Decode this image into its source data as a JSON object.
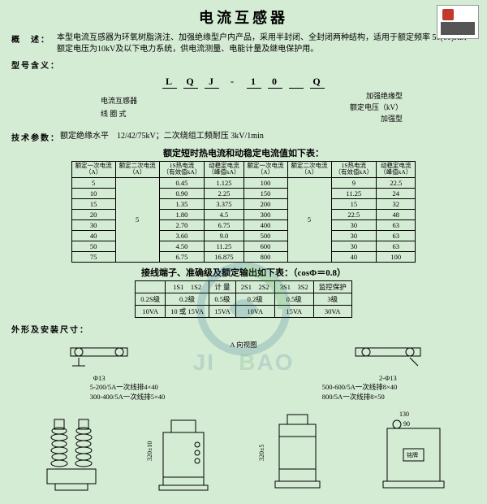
{
  "title": "电流互感器",
  "overview_label": "概　述：",
  "overview_text": "本型电流互感器为环氧树脂浇注、加强绝缘型户内产品，采用半封闭、全封闭两种结构，适用于额定频率 50(60)Hz、额定电压为10kV及以下电力系统，供电流测量、电能计量及继电保护用。",
  "model_label": "型号含义：",
  "model_code": [
    "L",
    "Q",
    "J",
    "-",
    "1",
    "0",
    "",
    "Q"
  ],
  "model_tags_left": [
    "电流互感器",
    "线 圈 式"
  ],
  "model_tags_right": [
    "加强绝缘型",
    "额定电压（kV）",
    "加强型"
  ],
  "tech_label": "技术参数：",
  "tech_text": "额定绝缘水平　12/42/75kV；二次绕组工频耐压 3kV/1min",
  "table1_title": "额定短时热电流和动稳定电流值如下表：",
  "table1_headers_left": [
    "额定一次电流\n（A）",
    "额定二次电流\n（A）",
    "1S热电流\n（有效值kA）",
    "动稳定电流\n（峰值kA）"
  ],
  "table1_headers_right": [
    "额定一次电流\n（A）",
    "额定二次电流\n（A）",
    "1S热电流\n（有效值kA）",
    "动稳定电流\n（峰值kA）"
  ],
  "table1_left_rows": [
    [
      "5",
      "",
      "0.45",
      "1.125"
    ],
    [
      "10",
      "",
      "0.90",
      "2.25"
    ],
    [
      "15",
      "",
      "1.35",
      "3.375"
    ],
    [
      "20",
      "",
      "1.80",
      "4.5"
    ],
    [
      "30",
      "",
      "2.70",
      "6.75"
    ],
    [
      "40",
      "",
      "3.60",
      "9.0"
    ],
    [
      "50",
      "",
      "4.50",
      "11.25"
    ],
    [
      "75",
      "",
      "6.75",
      "16.875"
    ]
  ],
  "table1_right_rows": [
    [
      "100",
      "",
      "9",
      "22.5"
    ],
    [
      "150",
      "",
      "11.25",
      "24"
    ],
    [
      "200",
      "",
      "15",
      "32"
    ],
    [
      "300",
      "",
      "22.5",
      "48"
    ],
    [
      "400",
      "",
      "30",
      "63"
    ],
    [
      "500",
      "",
      "30",
      "63"
    ],
    [
      "600",
      "",
      "30",
      "63"
    ],
    [
      "800",
      "",
      "40",
      "100"
    ]
  ],
  "table1_second_col": "5",
  "table2_title": "接线端子、准确级及额定输出如下表：（cosΦ＝0.8）",
  "table2_rows": [
    [
      "",
      "1S1　1S2",
      "计 量",
      "2S1　2S2",
      "3S1　3S2",
      "监控保护"
    ],
    [
      "0.2S级",
      "0.2级",
      "0.5级",
      "0.2级",
      "0.5级",
      "3级"
    ],
    [
      "10VA",
      "10 或 15VA",
      "15VA",
      "10VA",
      "15VA",
      "30VA"
    ]
  ],
  "outline_label": "外形及安装尺寸：",
  "a_view": "A 向视图",
  "mount_notes_left": [
    "5-200/5A一次线排4×40",
    "300-400/5A一次线排5×40"
  ],
  "mount_notes_right": [
    "500-600/5A一次线排8×40",
    "800/5A一次线排8×50"
  ],
  "phi13": "Φ13",
  "phi13b": "2-Φ13",
  "dim320": "320±10",
  "dim320b": "320±5",
  "dim130": "130",
  "dim90": "90",
  "plate": "铭牌",
  "colors": {
    "bg": "#d4ebd4",
    "text": "#000000",
    "watermark_blue": "#1a5f8a",
    "watermark_green": "#2a8f3a"
  }
}
